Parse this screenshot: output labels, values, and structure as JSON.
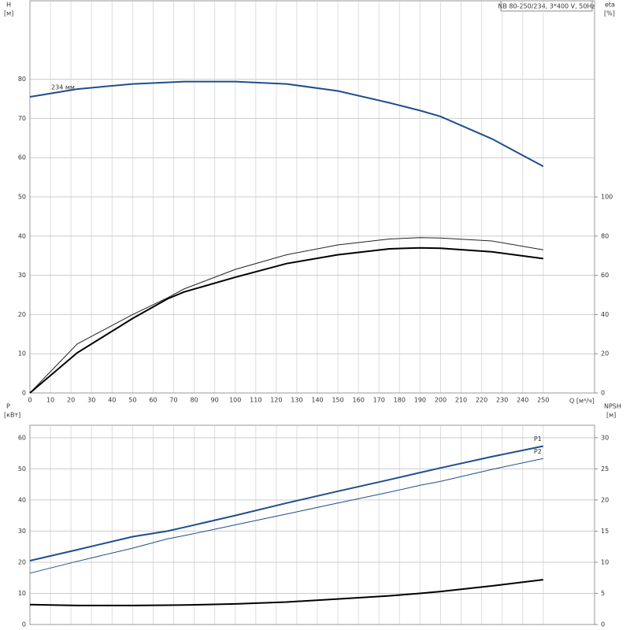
{
  "chart_data": [
    {
      "type": "line",
      "title": "NB 80-250/234, 3*400 V, 50Hz",
      "y_label": "H",
      "y_unit": "[м]",
      "y2_label": "eta",
      "y2_unit": "[%]",
      "x_label": "Q [м³/ч]",
      "x": [
        0,
        23,
        50,
        67,
        75,
        100,
        125,
        150,
        175,
        190,
        200,
        225,
        250
      ],
      "xlim": [
        0,
        275
      ],
      "xticks": [
        0,
        10,
        20,
        30,
        40,
        50,
        60,
        70,
        80,
        90,
        100,
        110,
        120,
        130,
        140,
        150,
        160,
        170,
        180,
        190,
        200,
        210,
        220,
        230,
        240,
        250
      ],
      "ylim": [
        0,
        100
      ],
      "yticks": [
        0,
        10,
        20,
        30,
        40,
        50,
        60,
        70,
        80
      ],
      "y2lim": [
        0,
        200
      ],
      "y2ticks": [
        0,
        20,
        40,
        60,
        80,
        100
      ],
      "grid": true,
      "series": [
        {
          "name": "234 мм",
          "color": "#1f4e8c",
          "line_width": 2,
          "axis": "y",
          "values": [
            75.5,
            77.5,
            78.8,
            79.2,
            79.4,
            79.4,
            78.8,
            77,
            74,
            72,
            70.5,
            64.8,
            57.8
          ]
        },
        {
          "color": "#222222",
          "line_width": 1,
          "axis": "y2",
          "values": [
            0,
            25,
            40,
            48.5,
            53,
            63,
            70.5,
            75.5,
            78.5,
            79.2,
            79,
            77.5,
            73
          ]
        },
        {
          "color": "#000000",
          "line_width": 2,
          "axis": "y2",
          "values": [
            0,
            20.5,
            38,
            48,
            51.5,
            59,
            66,
            70.5,
            73.5,
            74,
            73.8,
            72,
            68.5
          ]
        }
      ]
    },
    {
      "type": "line",
      "y_label": "P",
      "y_unit": "[кВт]",
      "y2_label": "NPSH",
      "y2_unit": "[м]",
      "x": [
        0,
        23,
        50,
        67,
        75,
        100,
        125,
        150,
        175,
        190,
        200,
        225,
        250
      ],
      "xlim": [
        0,
        275
      ],
      "ylim": [
        0,
        64
      ],
      "yticks": [
        0,
        10,
        20,
        30,
        40,
        50,
        60
      ],
      "y2lim": [
        0,
        32
      ],
      "y2ticks": [
        0,
        5,
        10,
        15,
        20,
        25,
        30
      ],
      "grid": true,
      "series": [
        {
          "name": "P1",
          "color": "#1f4e8c",
          "line_width": 2,
          "axis": "y",
          "values": [
            20.5,
            24,
            28.2,
            30,
            31.2,
            35,
            39,
            42.8,
            46.5,
            48.8,
            50.3,
            53.9,
            57.3
          ]
        },
        {
          "name": "P2",
          "color": "#1f4e8c",
          "line_width": 1,
          "axis": "y",
          "values": [
            16.5,
            20.3,
            24.5,
            27.5,
            28.5,
            32,
            35.5,
            39,
            42.5,
            44.7,
            46,
            49.8,
            53.3
          ]
        },
        {
          "color": "#000000",
          "line_width": 2,
          "axis": "y2",
          "values": [
            3.2,
            3.05,
            3.05,
            3.1,
            3.12,
            3.3,
            3.6,
            4.1,
            4.6,
            5.0,
            5.3,
            6.2,
            7.2
          ]
        }
      ]
    }
  ]
}
